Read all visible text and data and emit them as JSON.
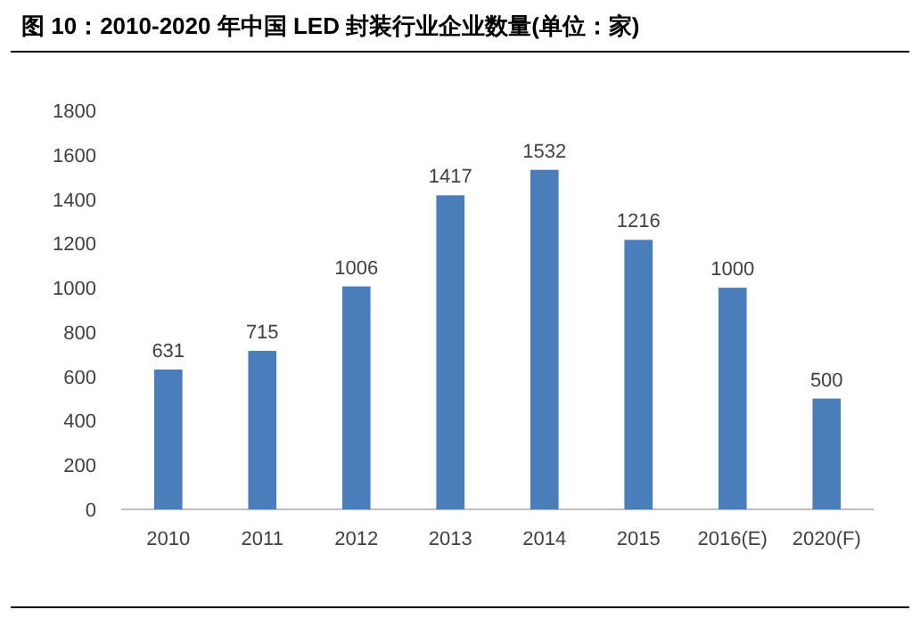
{
  "chart_data": {
    "type": "bar",
    "title": "图 10：2010-2020 年中国 LED 封装行业企业数量(单位：家)",
    "categories": [
      "2010",
      "2011",
      "2012",
      "2013",
      "2014",
      "2015",
      "2016(E)",
      "2020(F)"
    ],
    "values": [
      631,
      715,
      1006,
      1417,
      1532,
      1216,
      1000,
      500
    ],
    "color": "#4a7ebb",
    "ylim": [
      0,
      1800
    ],
    "yticks": [
      0,
      200,
      400,
      600,
      800,
      1000,
      1200,
      1400,
      1600,
      1800
    ],
    "data_labels": true
  }
}
